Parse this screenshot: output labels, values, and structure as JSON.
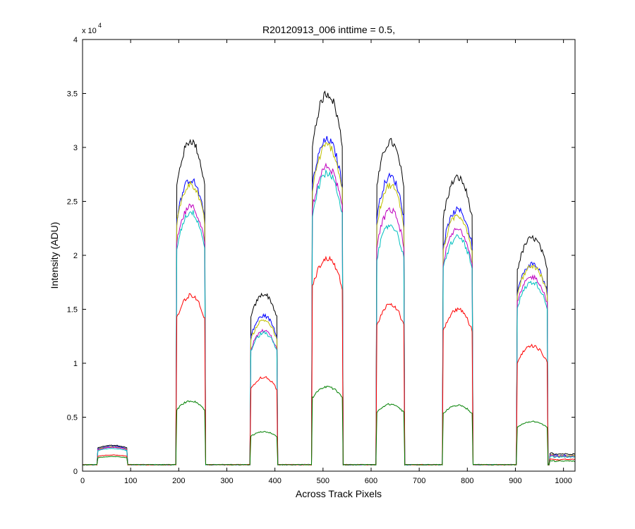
{
  "chart_data": {
    "type": "line",
    "title": "R20120913_006 inttime = 0.5,",
    "xlabel": "Across Track Pixels",
    "ylabel": "Intensity (ADU)",
    "y_exponent_label": "x 10",
    "y_exponent_power": "4",
    "xlim": [
      0,
      1024
    ],
    "ylim": [
      0,
      40000
    ],
    "x_ticks": [
      0,
      100,
      200,
      300,
      400,
      500,
      600,
      700,
      800,
      900,
      1000
    ],
    "x_tick_labels": [
      "0",
      "100",
      "200",
      "300",
      "400",
      "500",
      "600",
      "700",
      "800",
      "900",
      "1000"
    ],
    "y_ticks": [
      0,
      5000,
      10000,
      15000,
      20000,
      25000,
      30000,
      35000,
      40000
    ],
    "y_tick_labels": [
      "0",
      "0.5",
      "1",
      "1.5",
      "2",
      "2.5",
      "3",
      "3.5",
      "4"
    ],
    "grid": false,
    "baseline": 600,
    "peaks": [
      {
        "x_start": 32,
        "x_end": 93
      },
      {
        "x_start": 196,
        "x_end": 254
      },
      {
        "x_start": 350,
        "x_end": 404
      },
      {
        "x_start": 478,
        "x_end": 540
      },
      {
        "x_start": 612,
        "x_end": 668
      },
      {
        "x_start": 750,
        "x_end": 810
      },
      {
        "x_start": 904,
        "x_end": 966
      }
    ],
    "series": [
      {
        "color": "#000000",
        "values": [
          2400,
          30600,
          16400,
          35000,
          30500,
          27200,
          21600,
          1650
        ]
      },
      {
        "color": "#0000ff",
        "values": [
          2300,
          27000,
          14400,
          30700,
          27300,
          24200,
          19200,
          1500
        ]
      },
      {
        "color": "#bfbf00",
        "values": [
          2250,
          26600,
          14000,
          30200,
          26500,
          23700,
          19000,
          1450
        ]
      },
      {
        "color": "#bf00bf",
        "values": [
          2200,
          24500,
          13000,
          28200,
          24200,
          22400,
          18000,
          1400
        ]
      },
      {
        "color": "#00bfbf",
        "values": [
          2100,
          24000,
          12800,
          27600,
          22800,
          21700,
          17500,
          1350
        ]
      },
      {
        "color": "#ff0000",
        "values": [
          1500,
          16300,
          8700,
          19700,
          15500,
          15000,
          11600,
          1100
        ]
      },
      {
        "color": "#008000",
        "values": [
          1350,
          6500,
          3650,
          7800,
          6200,
          6100,
          4600,
          950
        ]
      }
    ]
  }
}
